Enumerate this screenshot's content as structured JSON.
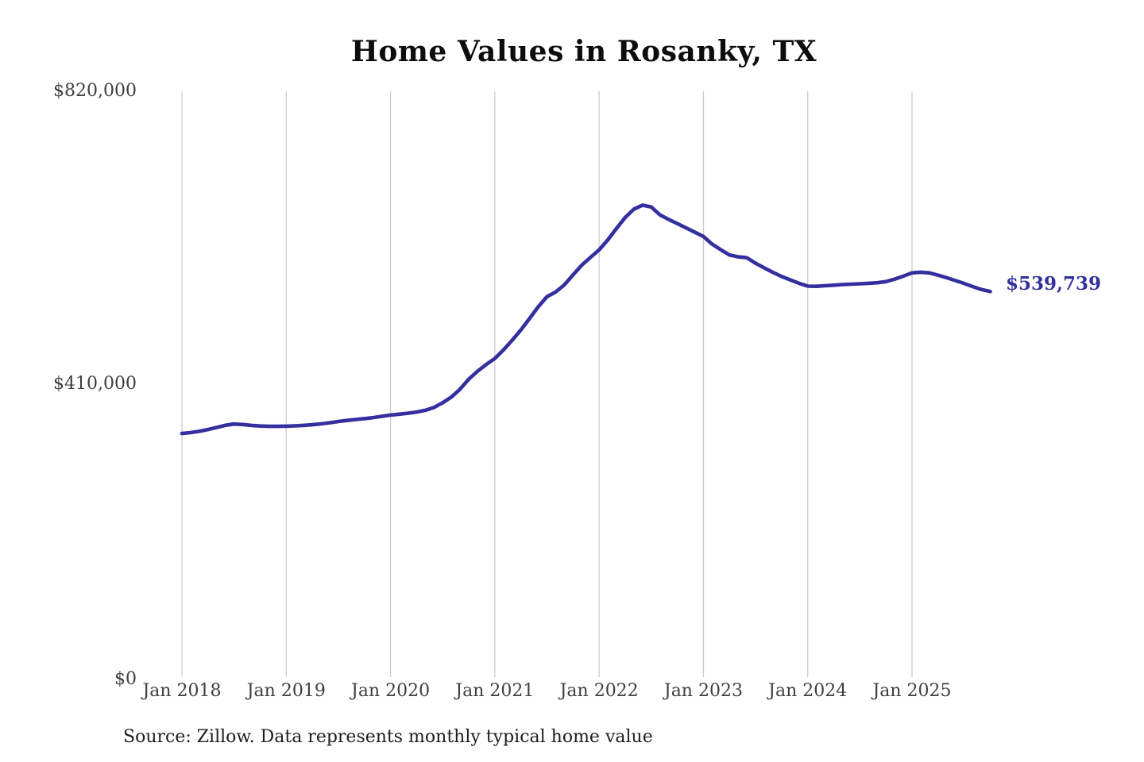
{
  "title": "Home Values in Rosanky, TX",
  "source_note": "Source: Zillow. Data represents monthly typical home value",
  "colors": {
    "line": "#332f9f",
    "end_label": "#332f9f",
    "grid": "#cccccc",
    "axis_text": "#3f3f3f",
    "title_text": "#0d0d0d",
    "source_text": "#1d1d1d",
    "background": "#ffffff"
  },
  "chart_data": {
    "type": "line",
    "title": "Home Values in Rosanky, TX",
    "xlabel": "",
    "ylabel": "",
    "grid": "vertical-only",
    "legend": "none",
    "ylim": [
      0,
      820000
    ],
    "y_tick_values": [
      820000,
      410000,
      0
    ],
    "y_tick_labels": [
      "$820,000",
      "$410,000",
      "$0"
    ],
    "x_tick_labels": [
      "Jan 2018",
      "Jan 2019",
      "Jan 2020",
      "Jan 2021",
      "Jan 2022",
      "Jan 2023",
      "Jan 2024",
      "Jan 2025"
    ],
    "last_value": 539739,
    "last_value_label": "$539,739",
    "series": [
      {
        "name": "Monthly typical home value",
        "x": [
          "2018-01",
          "2018-02",
          "2018-03",
          "2018-04",
          "2018-05",
          "2018-06",
          "2018-07",
          "2018-08",
          "2018-09",
          "2018-10",
          "2018-11",
          "2018-12",
          "2019-01",
          "2019-02",
          "2019-03",
          "2019-04",
          "2019-05",
          "2019-06",
          "2019-07",
          "2019-08",
          "2019-09",
          "2019-10",
          "2019-11",
          "2019-12",
          "2020-01",
          "2020-02",
          "2020-03",
          "2020-04",
          "2020-05",
          "2020-06",
          "2020-07",
          "2020-08",
          "2020-09",
          "2020-10",
          "2020-11",
          "2020-12",
          "2021-01",
          "2021-02",
          "2021-03",
          "2021-04",
          "2021-05",
          "2021-06",
          "2021-07",
          "2021-08",
          "2021-09",
          "2021-10",
          "2021-11",
          "2021-12",
          "2022-01",
          "2022-02",
          "2022-03",
          "2022-04",
          "2022-05",
          "2022-06",
          "2022-07",
          "2022-08",
          "2022-09",
          "2022-10",
          "2022-11",
          "2022-12",
          "2023-01",
          "2023-02",
          "2023-03",
          "2023-04",
          "2023-05",
          "2023-06",
          "2023-07",
          "2023-08",
          "2023-09",
          "2023-10",
          "2023-11",
          "2023-12",
          "2024-01",
          "2024-02",
          "2024-03",
          "2024-04",
          "2024-05",
          "2024-06",
          "2024-07",
          "2024-08",
          "2024-09",
          "2024-10",
          "2024-11",
          "2024-12",
          "2025-01",
          "2025-02",
          "2025-03",
          "2025-04",
          "2025-05",
          "2025-06",
          "2025-07",
          "2025-08",
          "2025-09",
          "2025-10"
        ],
        "values": [
          341000,
          342200,
          344000,
          346500,
          349500,
          352500,
          354200,
          353600,
          352300,
          351400,
          351000,
          351000,
          351200,
          351700,
          352300,
          353200,
          354400,
          356000,
          357800,
          359200,
          360500,
          361800,
          363200,
          365000,
          366800,
          368000,
          369300,
          371000,
          373500,
          377500,
          384000,
          392000,
          403000,
          417000,
          428000,
          437500,
          446000,
          458000,
          471500,
          486000,
          502000,
          518500,
          532500,
          539000,
          549000,
          563000,
          576500,
          587500,
          598000,
          612000,
          628000,
          643500,
          655000,
          660500,
          658000,
          647000,
          640500,
          634800,
          628800,
          622800,
          616800,
          606000,
          598200,
          590800,
          588200,
          587000,
          579200,
          572800,
          566400,
          560800,
          556000,
          551200,
          547200,
          547000,
          547800,
          548600,
          549400,
          550000,
          550600,
          551200,
          552000,
          553600,
          557000,
          561200,
          565800,
          566800,
          565800,
          562600,
          559000,
          555000,
          551000,
          546500,
          542500,
          539739
        ]
      }
    ]
  }
}
